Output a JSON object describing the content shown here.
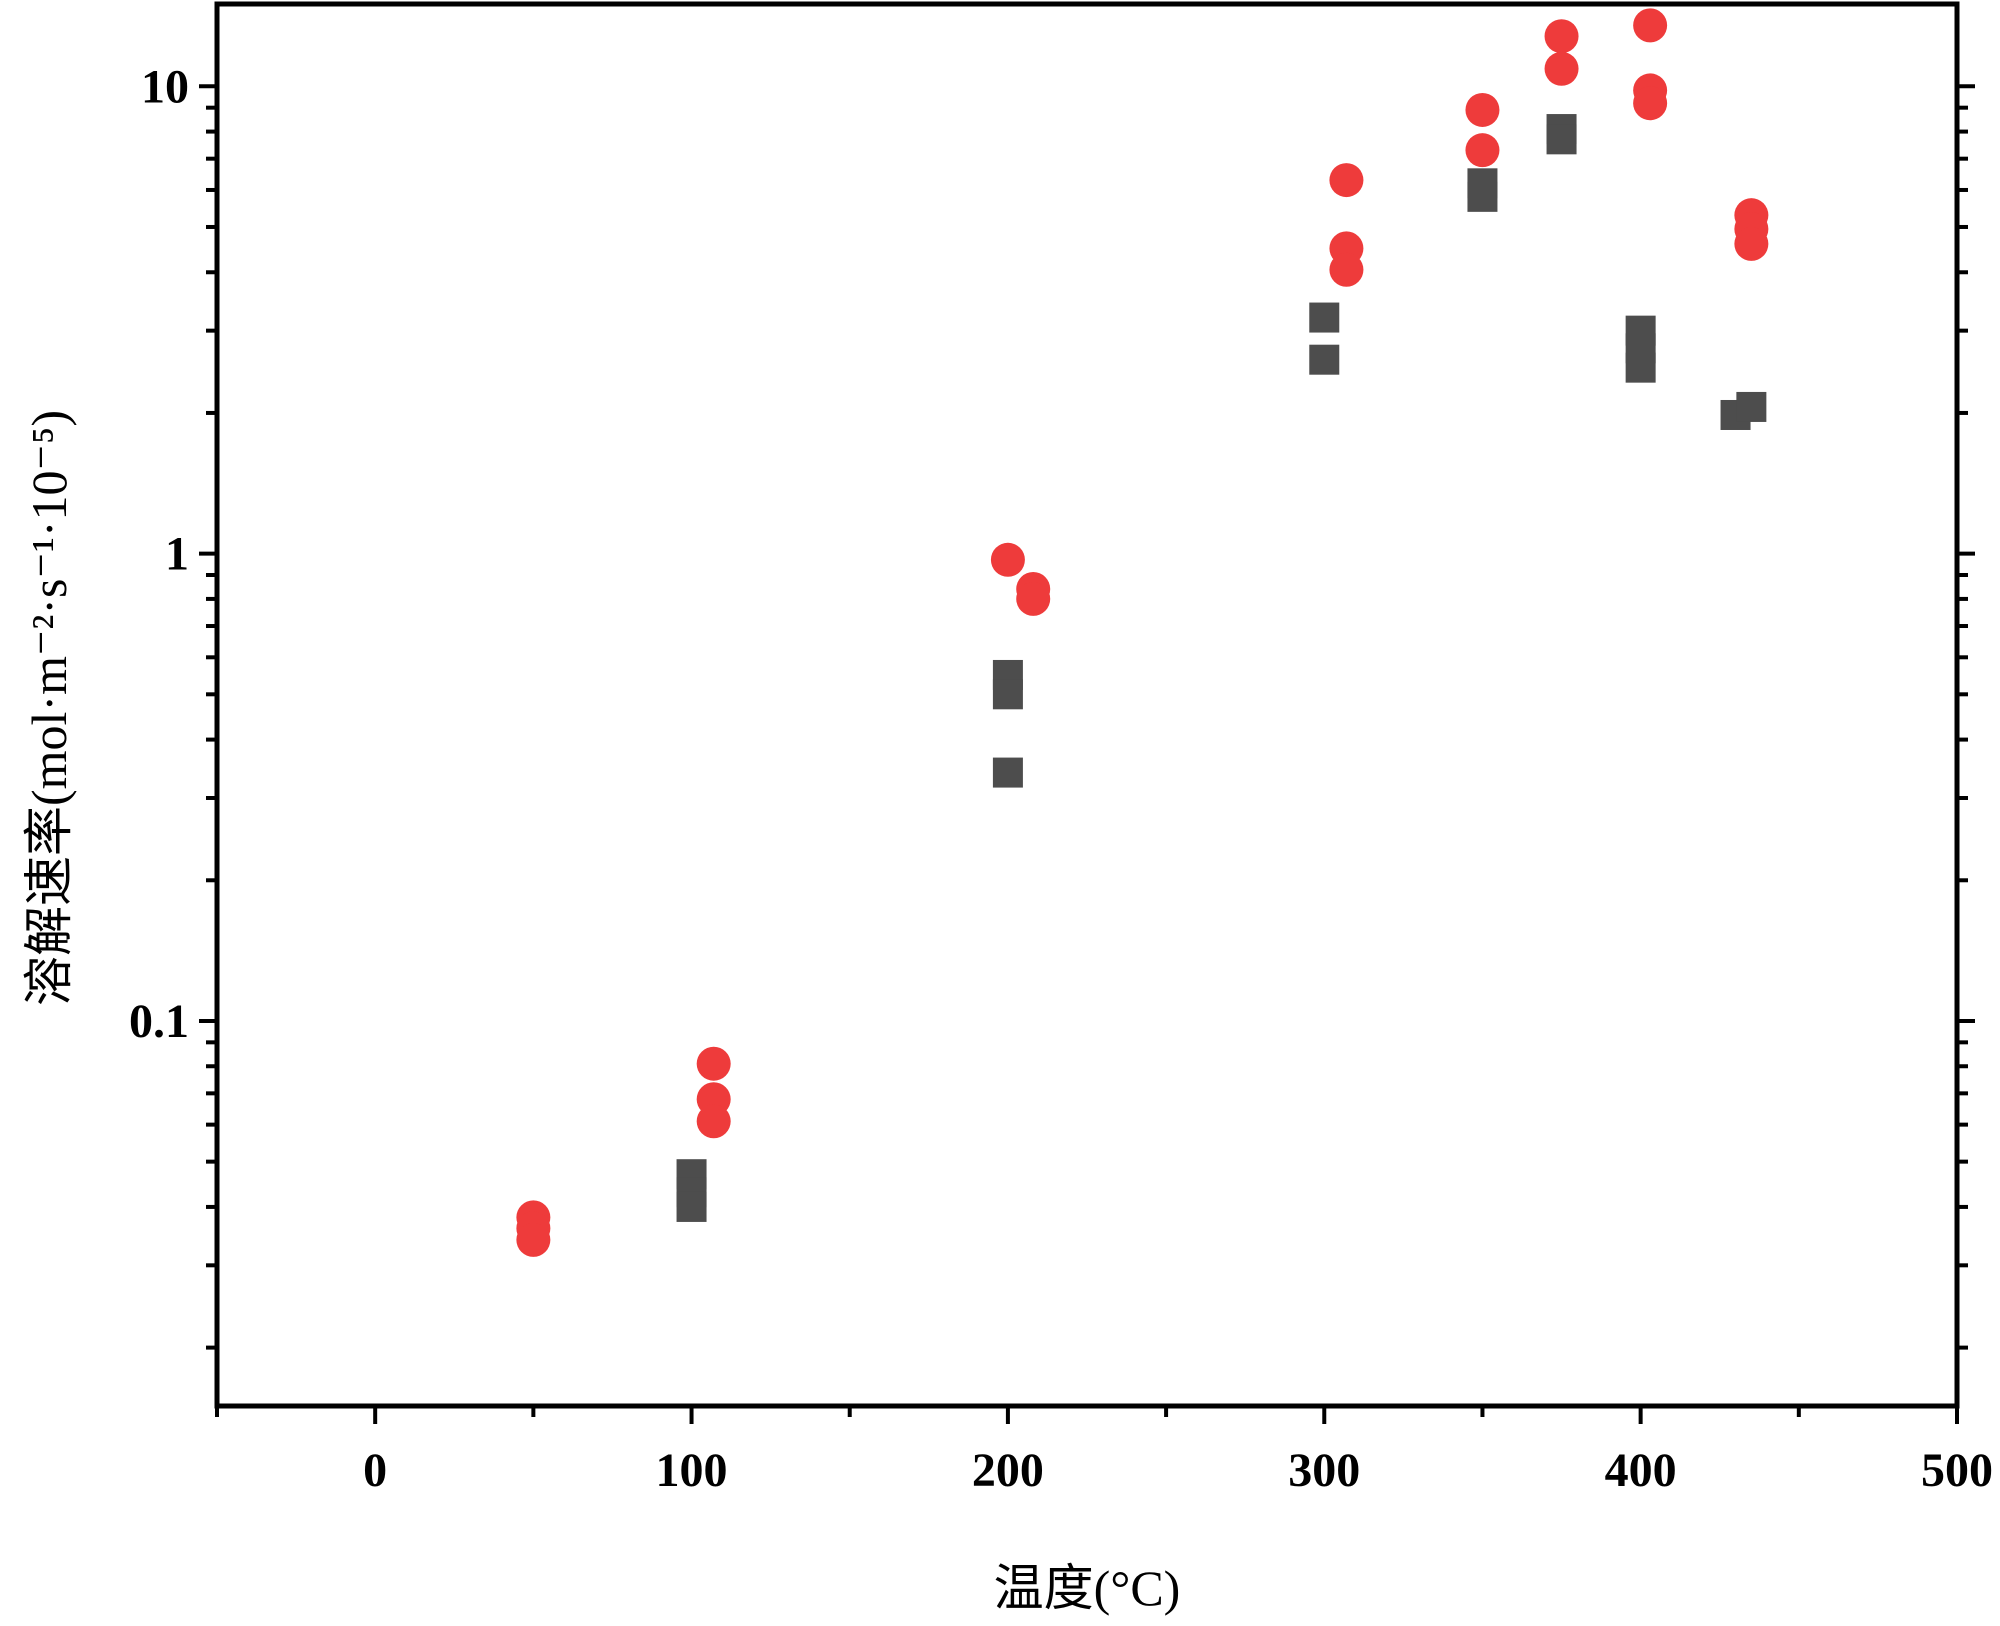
{
  "chart_data": {
    "type": "scatter",
    "xlabel": "温度(°C)",
    "ylabel": "溶解速率(mol·m⁻²·s⁻¹·10⁻⁵)",
    "xlim": [
      -50,
      500
    ],
    "ylim": [
      0.015,
      15
    ],
    "y_scale": "log",
    "grid": false,
    "x_ticks": [
      0,
      100,
      200,
      300,
      400,
      500
    ],
    "x_tick_labels": [
      "0",
      "100",
      "200",
      "300",
      "400",
      "500"
    ],
    "y_ticks": [
      0.1,
      1,
      10
    ],
    "y_tick_labels": [
      "0.1",
      "1",
      "10"
    ],
    "series": [
      {
        "marker": "square",
        "color": "#4d4d4d",
        "points": [
          {
            "x": 100,
            "y": 0.047
          },
          {
            "x": 100,
            "y": 0.043
          },
          {
            "x": 100,
            "y": 0.04
          },
          {
            "x": 200,
            "y": 0.55
          },
          {
            "x": 200,
            "y": 0.5
          },
          {
            "x": 200,
            "y": 0.34
          },
          {
            "x": 300,
            "y": 3.2
          },
          {
            "x": 300,
            "y": 2.6
          },
          {
            "x": 350,
            "y": 6.2
          },
          {
            "x": 350,
            "y": 5.8
          },
          {
            "x": 375,
            "y": 8.1
          },
          {
            "x": 375,
            "y": 7.7
          },
          {
            "x": 400,
            "y": 3.0
          },
          {
            "x": 400,
            "y": 2.75
          },
          {
            "x": 400,
            "y": 2.5
          },
          {
            "x": 430,
            "y": 1.98
          },
          {
            "x": 435,
            "y": 2.06
          }
        ]
      },
      {
        "marker": "circle",
        "color": "#ee3b3b",
        "points": [
          {
            "x": 50,
            "y": 0.038
          },
          {
            "x": 50,
            "y": 0.036
          },
          {
            "x": 50,
            "y": 0.034
          },
          {
            "x": 107,
            "y": 0.081
          },
          {
            "x": 107,
            "y": 0.068
          },
          {
            "x": 107,
            "y": 0.061
          },
          {
            "x": 200,
            "y": 0.97
          },
          {
            "x": 208,
            "y": 0.84
          },
          {
            "x": 208,
            "y": 0.8
          },
          {
            "x": 307,
            "y": 6.3
          },
          {
            "x": 307,
            "y": 4.5
          },
          {
            "x": 307,
            "y": 4.05
          },
          {
            "x": 350,
            "y": 8.9
          },
          {
            "x": 350,
            "y": 7.3
          },
          {
            "x": 375,
            "y": 12.8
          },
          {
            "x": 375,
            "y": 10.9
          },
          {
            "x": 403,
            "y": 13.5
          },
          {
            "x": 403,
            "y": 9.8
          },
          {
            "x": 403,
            "y": 9.2
          },
          {
            "x": 435,
            "y": 5.3
          },
          {
            "x": 435,
            "y": 4.95
          },
          {
            "x": 435,
            "y": 4.6
          }
        ]
      }
    ]
  }
}
